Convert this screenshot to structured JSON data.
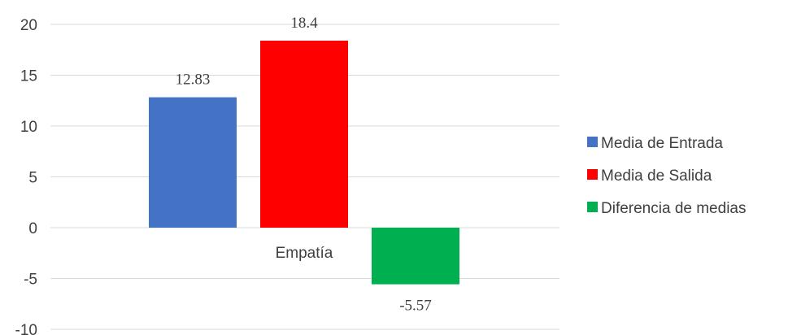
{
  "chart_data": {
    "type": "bar",
    "categories": [
      "Empatía"
    ],
    "series": [
      {
        "name": "Media de Entrada",
        "values": [
          12.83
        ],
        "color": "#4472C4",
        "label": "12.83"
      },
      {
        "name": "Media de Salida",
        "values": [
          18.4
        ],
        "color": "#FF0000",
        "label": "18.4"
      },
      {
        "name": "Diferencia de medias",
        "values": [
          -5.57
        ],
        "color": "#00B050",
        "label": "-5.57"
      }
    ],
    "title": "",
    "xlabel": "",
    "ylabel": "",
    "ylim": [
      -10,
      20
    ],
    "yticks": [
      20,
      15,
      10,
      5,
      0,
      -5,
      -10
    ],
    "ytick_labels": [
      "20",
      "15",
      "10",
      "5",
      "0",
      "-5",
      "-10"
    ],
    "grid": true,
    "legend_position": "right",
    "colors": {
      "gridline": "#D9D9D9",
      "text": "#404040"
    }
  }
}
